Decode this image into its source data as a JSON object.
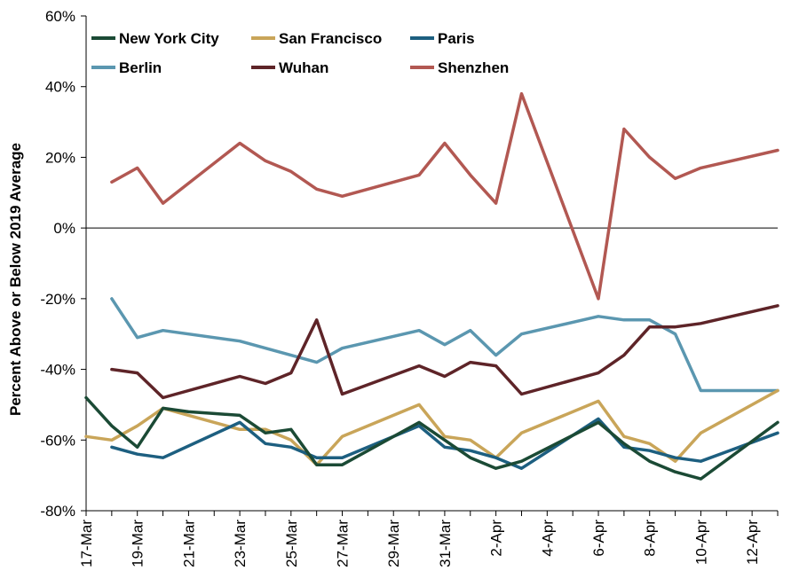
{
  "chart_data": {
    "type": "line",
    "title": "",
    "xlabel": "",
    "ylabel": "Percent Above or Below 2019 Average",
    "ylim": [
      -80,
      60
    ],
    "yticks": [
      -80,
      -60,
      -40,
      -20,
      0,
      20,
      40,
      60
    ],
    "ytick_labels": [
      "-80%",
      "-60%",
      "-40%",
      "-20%",
      "0%",
      "20%",
      "40%",
      "60%"
    ],
    "x": [
      "17-Mar",
      "18-Mar",
      "19-Mar",
      "20-Mar",
      "21-Mar",
      "22-Mar",
      "23-Mar",
      "24-Mar",
      "25-Mar",
      "26-Mar",
      "27-Mar",
      "28-Mar",
      "29-Mar",
      "30-Mar",
      "31-Mar",
      "1-Apr",
      "2-Apr",
      "3-Apr",
      "4-Apr",
      "5-Apr",
      "6-Apr",
      "7-Apr",
      "8-Apr",
      "9-Apr",
      "10-Apr",
      "11-Apr",
      "12-Apr",
      "13-Apr"
    ],
    "xtick_labels": [
      "17-Mar",
      "19-Mar",
      "21-Mar",
      "23-Mar",
      "25-Mar",
      "27-Mar",
      "29-Mar",
      "31-Mar",
      "2-Apr",
      "4-Apr",
      "6-Apr",
      "8-Apr",
      "10-Apr",
      "12-Apr"
    ],
    "grid": false,
    "legend_position": "top",
    "series": [
      {
        "name": "New York City",
        "color": "#1b4a35",
        "values": [
          -48,
          -56,
          -62,
          -51,
          -52,
          -52.5,
          -53,
          -58,
          -57,
          -67,
          -67,
          null,
          null,
          -55,
          -60,
          -65,
          -68,
          -66,
          null,
          null,
          -55,
          -61,
          -66,
          -69,
          -71,
          null,
          null,
          -55
        ]
      },
      {
        "name": "San Francisco",
        "color": "#c9a559",
        "values": [
          -59,
          -60,
          -56,
          -51,
          -53,
          -55,
          -57,
          -57,
          -60,
          -67,
          -59,
          null,
          null,
          -50,
          -59,
          -60,
          -65,
          -58,
          null,
          null,
          -49,
          -59,
          -61,
          -66,
          -58,
          null,
          null,
          -46
        ]
      },
      {
        "name": "Paris",
        "color": "#1d5f80",
        "values": [
          null,
          -62,
          -64,
          -65,
          null,
          null,
          -55,
          -61,
          -62,
          -65,
          -65,
          null,
          null,
          -56,
          -62,
          -63,
          -65,
          -68,
          null,
          null,
          -54,
          -62,
          -63,
          -65,
          -66,
          null,
          null,
          -58
        ]
      },
      {
        "name": "Berlin",
        "color": "#5b97b0",
        "values": [
          null,
          -20,
          -31,
          -29,
          null,
          null,
          -32,
          null,
          -36,
          -38,
          -34,
          null,
          null,
          -29,
          -33,
          -29,
          -36,
          -30,
          null,
          null,
          -25,
          -26,
          -26,
          -30,
          -46,
          -46,
          -46,
          -46
        ]
      },
      {
        "name": "Wuhan",
        "color": "#5e2428",
        "values": [
          null,
          -40,
          -41,
          -48,
          null,
          null,
          -42,
          -44,
          -41,
          -26,
          -47,
          null,
          null,
          -39,
          -42,
          -38,
          -39,
          -47,
          null,
          null,
          -41,
          -36,
          -28,
          -28,
          -27,
          null,
          null,
          -22
        ]
      },
      {
        "name": "Shenzhen",
        "color": "#b25852",
        "values": [
          null,
          13,
          17,
          7,
          null,
          null,
          24,
          19,
          16,
          11,
          9,
          null,
          null,
          15,
          24,
          15,
          7,
          38,
          null,
          null,
          -20,
          28,
          20,
          14,
          17,
          null,
          null,
          22
        ]
      }
    ]
  }
}
